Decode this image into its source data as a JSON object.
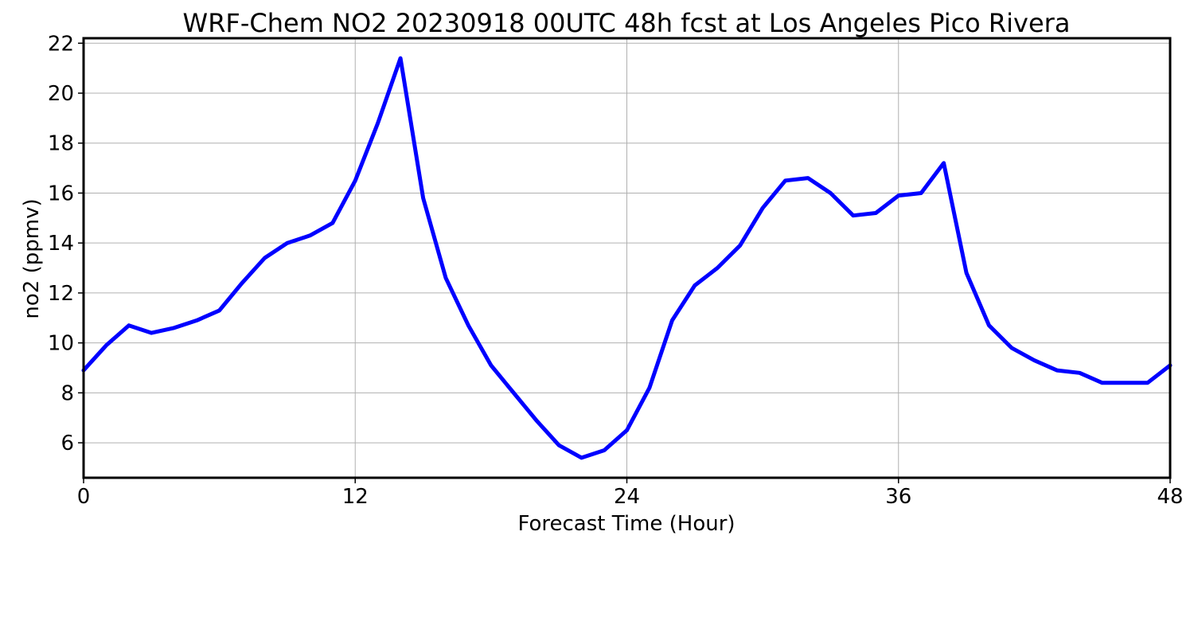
{
  "chart_data": {
    "type": "line",
    "title": "WRF-Chem NO2  20230918 00UTC 48h fcst at Los Angeles Pico Rivera",
    "xlabel": "Forecast Time (Hour)",
    "ylabel": "no2  (ppmv)",
    "xlim": [
      0,
      48
    ],
    "ylim": [
      4.6,
      22.2
    ],
    "xticks": [
      0,
      12,
      24,
      36,
      48
    ],
    "yticks": [
      6,
      8,
      10,
      12,
      14,
      16,
      18,
      20,
      22
    ],
    "grid": true,
    "line_color": "#0000ff",
    "series": [
      {
        "x": [
          0,
          1,
          2,
          3,
          4,
          5,
          6,
          7,
          8,
          9,
          10,
          11,
          12,
          13,
          14,
          15,
          16,
          17,
          18,
          19,
          20,
          21,
          22,
          23,
          24,
          25,
          26,
          27,
          28,
          29,
          30,
          31,
          32,
          33,
          34,
          35,
          36,
          37,
          38,
          39,
          40,
          41,
          42,
          43,
          44,
          45,
          46,
          47,
          48
        ],
        "values": [
          8.9,
          9.9,
          10.7,
          10.4,
          10.6,
          10.9,
          11.3,
          12.4,
          13.4,
          14.0,
          14.3,
          14.8,
          16.5,
          18.8,
          21.4,
          15.8,
          12.6,
          10.7,
          9.1,
          8.0,
          6.9,
          5.9,
          5.4,
          5.7,
          6.5,
          8.2,
          10.9,
          12.3,
          13.0,
          13.9,
          15.4,
          16.5,
          16.6,
          16.0,
          15.1,
          15.2,
          15.9,
          16.0,
          17.2,
          12.8,
          10.7,
          9.8,
          9.3,
          8.9,
          8.8,
          8.4,
          8.4,
          8.4,
          9.1
        ]
      }
    ]
  }
}
